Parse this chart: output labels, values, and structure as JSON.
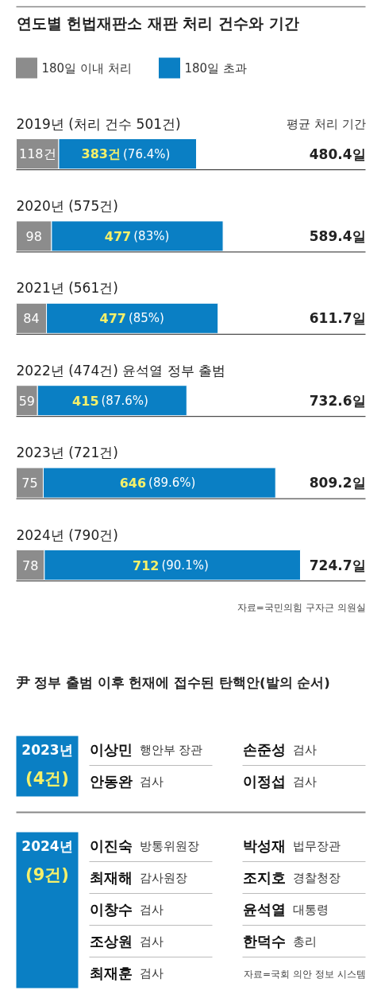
{
  "chart_data": [
    {
      "type": "bar",
      "orientation": "horizontal",
      "stacked": true,
      "title": "연도별 헌법재판소 재판 처리 건수와 기간",
      "legend": "top",
      "categories": [
        "2019년 (처리 건수 501건)",
        "2020년 (575건)",
        "2021년 (561건)",
        "2022년 (474건) 윤석열 정부 출범",
        "2023년 (721건)",
        "2024년 (790건)"
      ],
      "series": [
        {
          "name": "180일 이내 처리",
          "color": "#8c8c8c",
          "values": [
            118,
            98,
            84,
            59,
            75,
            78
          ],
          "value_labels": [
            "118건",
            "98",
            "84",
            "59",
            "75",
            "78"
          ]
        },
        {
          "name": "180일 초과",
          "color": "#0a7fc4",
          "values": [
            383,
            477,
            477,
            415,
            646,
            712
          ],
          "value_labels": [
            "383건(76.4%)",
            "477(83%)",
            "477(85%)",
            "415(87.6%)",
            "646(89.6%)",
            "712(90.1%)"
          ]
        }
      ],
      "annotations": [
        "평균 처리 기간",
        "480.4일",
        "589.4일",
        "611.7일",
        "732.6일",
        "809.2일",
        "724.7일",
        "자료=국민의힘 구자근 의원실"
      ]
    },
    {
      "type": "other",
      "title": "尹 정부 출범 이후 헌재에 접수된 탄핵안(발의 순서)",
      "color": "#0a7fc4",
      "categories": [
        "2023년",
        "2024년"
      ],
      "values": [
        4,
        9
      ],
      "value_labels": [
        "(4건)",
        "(9건)"
      ],
      "annotations": [
        "이상민 행안부 장관",
        "손준성 검사",
        "안동완 검사",
        "이정섭 검사",
        "이진숙 방통위원장",
        "박성재 법무장관",
        "최재해 감사원장",
        "조지호 경찰청장",
        "이창수 검사",
        "윤석열 대통령",
        "조상원 검사",
        "한덕수 총리",
        "최재훈 검사",
        "자료=국회 의안 정보 시스템"
      ]
    }
  ]
}
